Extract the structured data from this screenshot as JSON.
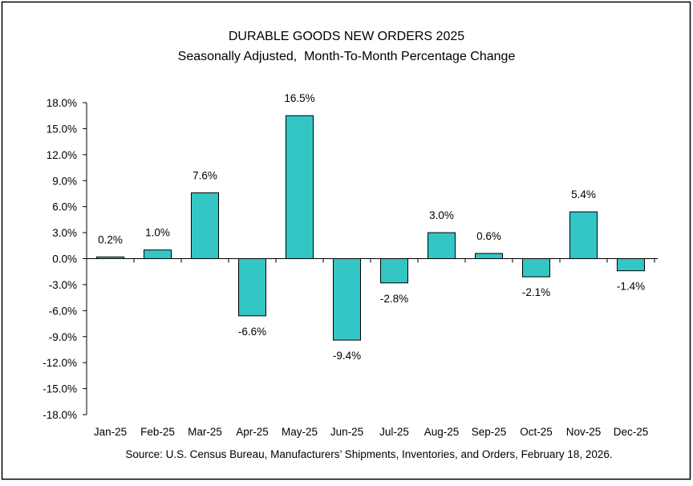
{
  "chart_data": {
    "type": "bar",
    "title": "DURABLE GOODS NEW ORDERS 2025",
    "subtitle": "Seasonally Adjusted,  Month-To-Month Percentage Change",
    "source": "Source: U.S. Census Bureau, Manufacturers’ Shipments, Inventories, and Orders, February 18, 2026.",
    "categories": [
      "Jan-25",
      "Feb-25",
      "Mar-25",
      "Apr-25",
      "May-25",
      "Jun-25",
      "Jul-25",
      "Aug-25",
      "Sep-25",
      "Oct-25",
      "Nov-25",
      "Dec-25"
    ],
    "values": [
      0.2,
      1.0,
      7.6,
      -6.6,
      16.5,
      -9.4,
      -2.8,
      3.0,
      0.6,
      -2.1,
      5.4,
      -1.4
    ],
    "data_labels": [
      "0.2%",
      "1.0%",
      "7.6%",
      "-6.6%",
      "16.5%",
      "-9.4%",
      "-2.8%",
      "3.0%",
      "0.6%",
      "-2.1%",
      "5.4%",
      "-1.4%"
    ],
    "ylim": [
      -18,
      18
    ],
    "yticks": [
      "18.0%",
      "15.0%",
      "12.0%",
      "9.0%",
      "6.0%",
      "3.0%",
      "0.0%",
      "-3.0%",
      "-6.0%",
      "-9.0%",
      "-12.0%",
      "-15.0%",
      "-18.0%"
    ],
    "ytick_values": [
      18,
      15,
      12,
      9,
      6,
      3,
      0,
      -3,
      -6,
      -9,
      -12,
      -15,
      -18
    ],
    "grid": false,
    "bar_color": "#33C6C4",
    "xlabel": "",
    "ylabel": ""
  }
}
